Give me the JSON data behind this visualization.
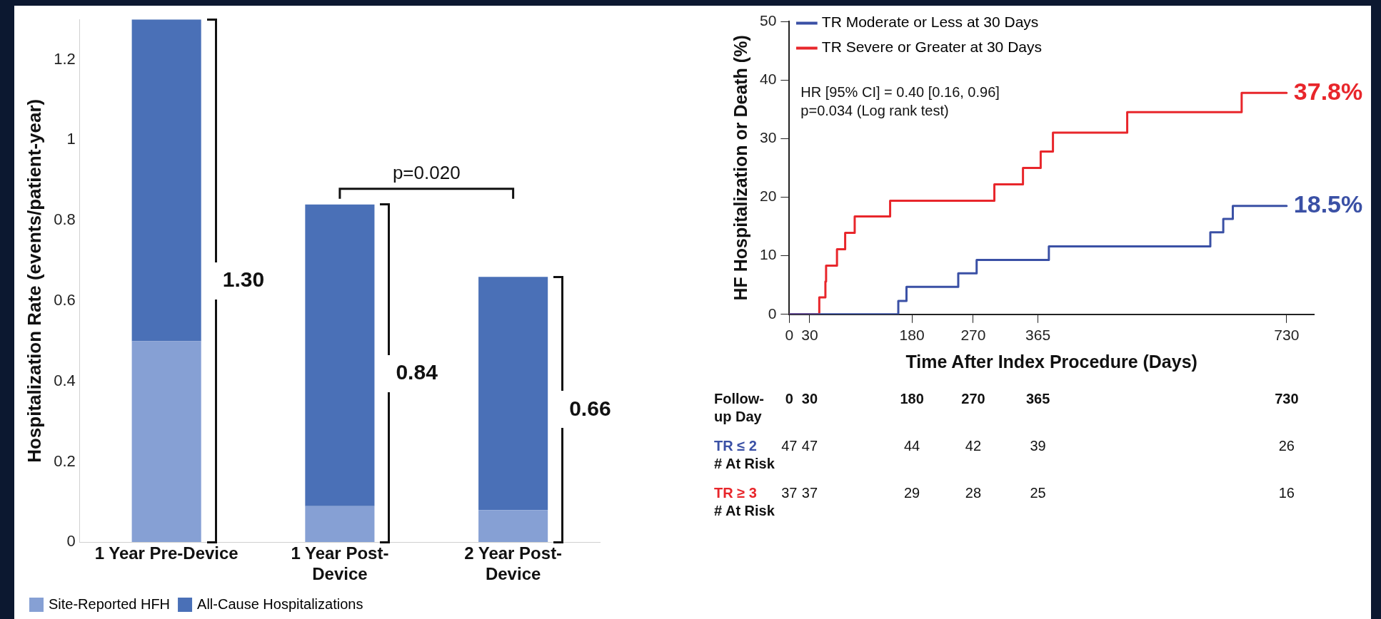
{
  "chart_data": [
    {
      "type": "bar",
      "stacked": true,
      "ylabel": "Hospitalization Rate (events/patient-year)",
      "categories": [
        "1 Year Pre-Device",
        "1 Year Post-Device",
        "2 Year Post-Device"
      ],
      "series": [
        {
          "name": "Site-Reported HFH",
          "color": "#86a0d4",
          "values": [
            0.5,
            0.09,
            0.08
          ]
        },
        {
          "name": "All-Cause Hospitalizations",
          "color": "#4a70b7",
          "values": [
            0.8,
            0.75,
            0.58
          ]
        }
      ],
      "totals": [
        "1.30",
        "0.84",
        "0.66"
      ],
      "ylim": [
        0,
        1.3
      ],
      "yticks": [
        0,
        0.2,
        0.4,
        0.6,
        0.8,
        1,
        1.2
      ],
      "grid": false,
      "legend": "bottom",
      "annotations": [
        "p=0.020"
      ]
    },
    {
      "type": "step",
      "ylabel": "HF Hospitalization or Death (%)",
      "xlabel": "Time After Index Procedure (Days)",
      "xlim": [
        0,
        770
      ],
      "xticks": [
        0,
        30,
        180,
        270,
        365,
        730
      ],
      "ylim": [
        0,
        50
      ],
      "yticks": [
        0,
        10,
        20,
        30,
        40,
        50
      ],
      "grid": false,
      "legend": "top left",
      "marker": "none",
      "line_style": "solid",
      "series": [
        {
          "name": "TR Moderate or Less at 30 Days",
          "color": "#3a50a5",
          "x": [
            0,
            160,
            172,
            248,
            275,
            381,
            618,
            637,
            651,
            730
          ],
          "values": [
            0,
            2.3,
            4.7,
            7.0,
            9.3,
            11.6,
            14.0,
            16.3,
            18.5,
            18.5
          ],
          "value_labels": [
            null,
            null,
            null,
            null,
            null,
            null,
            null,
            null,
            null,
            "18.5%"
          ]
        },
        {
          "name": "TR Severe or Greater at 30 Days",
          "color": "#e8262b",
          "x": [
            0,
            44,
            53,
            54,
            70,
            82,
            96,
            148,
            301,
            343,
            369,
            387,
            496,
            664,
            730
          ],
          "values": [
            0,
            2.9,
            5.6,
            8.3,
            11.1,
            13.9,
            16.7,
            19.4,
            22.2,
            25.0,
            27.8,
            31.0,
            34.5,
            37.8,
            37.8
          ],
          "value_labels": [
            null,
            null,
            null,
            null,
            null,
            null,
            null,
            null,
            null,
            null,
            null,
            null,
            null,
            null,
            "37.8%"
          ]
        }
      ],
      "annotations": [
        "HR [95% CI] = 0.40 [0.16, 0.96]",
        "p=0.034 (Log rank test)"
      ]
    },
    {
      "type": "other",
      "data_labels": true,
      "xlabel": "Follow-up Day",
      "categories": [
        "0",
        "30",
        "180",
        "270",
        "365",
        "730"
      ],
      "series": [
        {
          "name": "TR ≤ 2\n# At Risk",
          "color": "#3a50a5",
          "values": [
            47,
            47,
            44,
            42,
            39,
            26
          ]
        },
        {
          "name": "TR ≥ 3\n# At Risk",
          "color": "#e8262b",
          "values": [
            37,
            37,
            29,
            28,
            25,
            16
          ]
        }
      ]
    }
  ]
}
